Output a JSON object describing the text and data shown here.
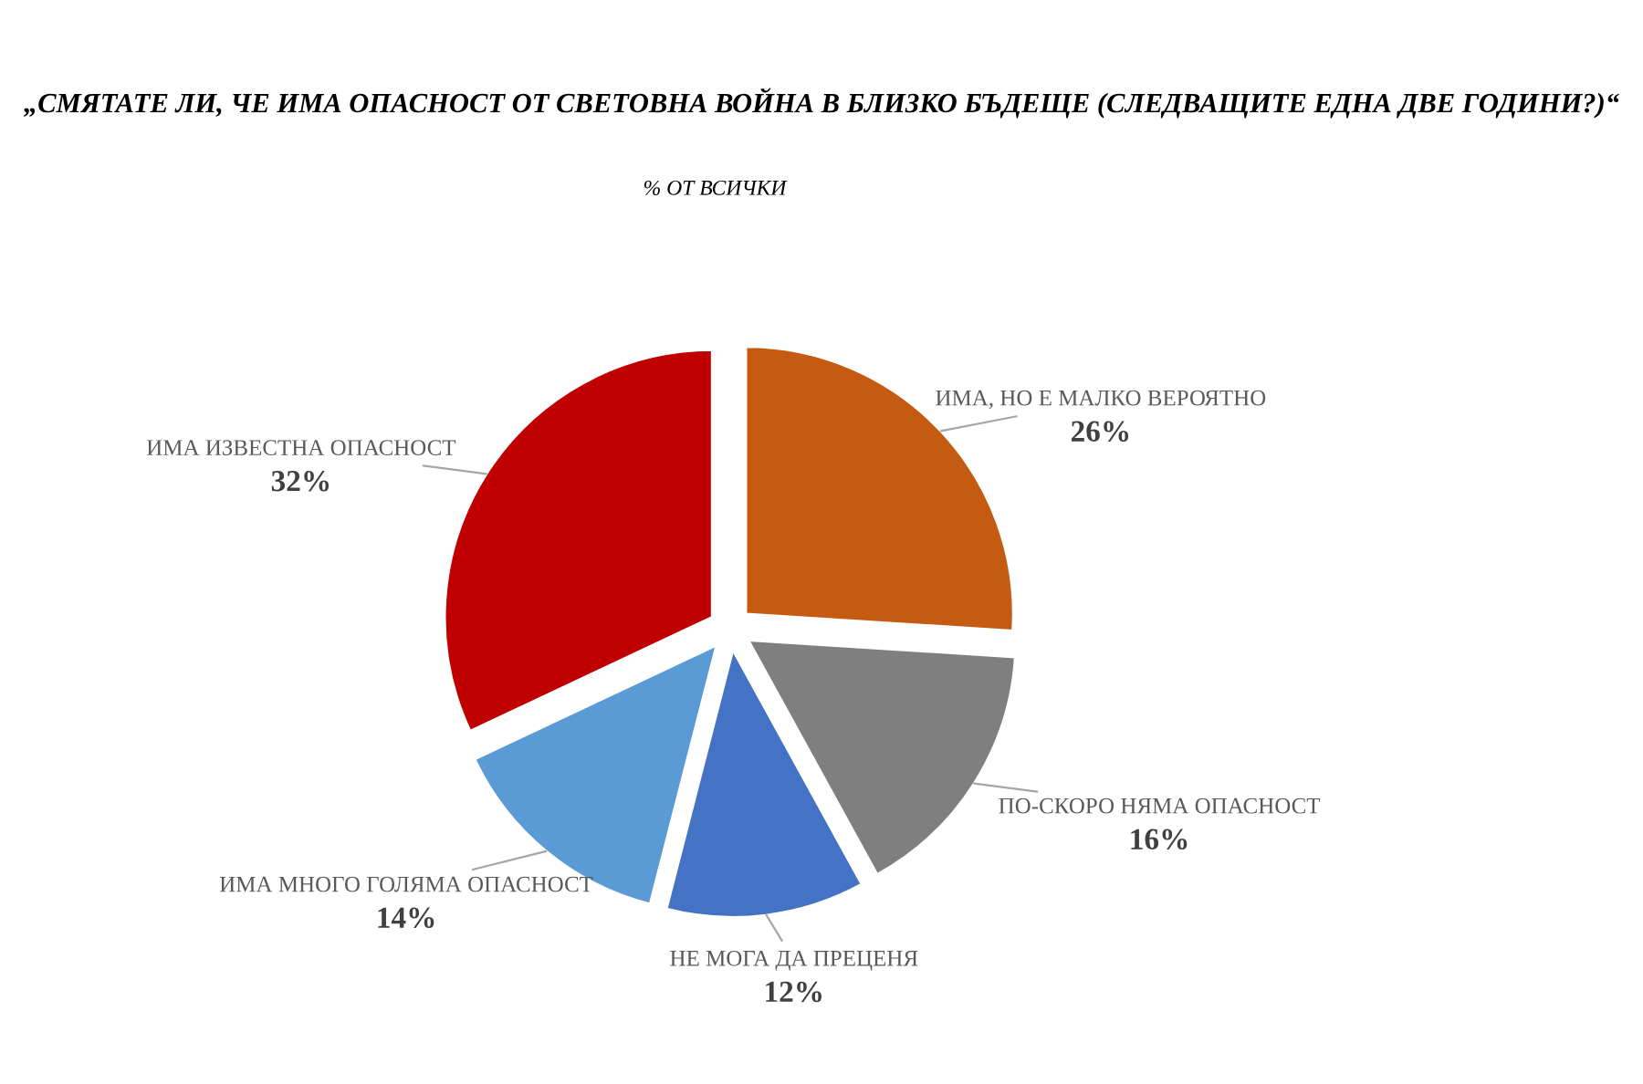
{
  "chart_data": {
    "type": "pie",
    "title": "„СМЯТАТЕ ЛИ, ЧЕ ИМА ОПАСНОСТ ОТ СВЕТОВНА ВОЙНА В БЛИЗКО БЪДЕЩЕ (СЛЕДВАЩИТЕ ЕДНА ДВЕ ГОДИНИ?)“",
    "subtitle": "% ОТ ВСИЧКИ",
    "categories": [
      "ИМА, НО Е МАЛКО ВЕРОЯТНО",
      "ПО-СКОРО НЯМА ОПАСНОСТ",
      "НЕ МОГА ДА ПРЕЦЕНЯ",
      "ИМА МНОГО ГОЛЯМА ОПАСНОСТ",
      "ИМА ИЗВЕСТНА ОПАСНОСТ"
    ],
    "values": [
      26,
      16,
      12,
      14,
      32
    ],
    "colors": [
      "#c55a11",
      "#7f7f7f",
      "#4472c4",
      "#5b9bd5",
      "#c00000"
    ],
    "value_labels": [
      "26%",
      "16%",
      "12%",
      "14%",
      "32%"
    ]
  }
}
